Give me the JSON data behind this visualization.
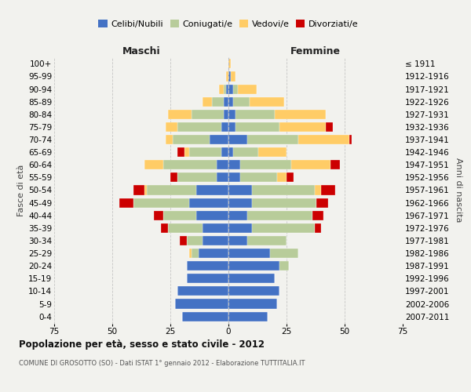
{
  "age_groups": [
    "100+",
    "95-99",
    "90-94",
    "85-89",
    "80-84",
    "75-79",
    "70-74",
    "65-69",
    "60-64",
    "55-59",
    "50-54",
    "45-49",
    "40-44",
    "35-39",
    "30-34",
    "25-29",
    "20-24",
    "15-19",
    "10-14",
    "5-9",
    "0-4"
  ],
  "birth_years": [
    "≤ 1911",
    "1912-1916",
    "1917-1921",
    "1922-1926",
    "1927-1931",
    "1932-1936",
    "1937-1941",
    "1942-1946",
    "1947-1951",
    "1952-1956",
    "1957-1961",
    "1962-1966",
    "1967-1971",
    "1972-1976",
    "1977-1981",
    "1982-1986",
    "1987-1991",
    "1992-1996",
    "1997-2001",
    "2002-2006",
    "2007-2011"
  ],
  "maschi_celibi": [
    0,
    0,
    1,
    2,
    2,
    3,
    8,
    3,
    5,
    5,
    14,
    17,
    14,
    11,
    11,
    13,
    18,
    18,
    22,
    23,
    20
  ],
  "maschi_coniugati": [
    0,
    0,
    1,
    5,
    14,
    19,
    16,
    14,
    23,
    17,
    21,
    24,
    14,
    15,
    7,
    3,
    0,
    0,
    0,
    0,
    0
  ],
  "maschi_vedovi": [
    0,
    1,
    2,
    4,
    10,
    5,
    3,
    2,
    8,
    0,
    1,
    0,
    0,
    0,
    0,
    1,
    0,
    0,
    0,
    0,
    0
  ],
  "maschi_divorziati": [
    0,
    0,
    0,
    0,
    0,
    0,
    0,
    3,
    0,
    3,
    5,
    6,
    4,
    3,
    3,
    0,
    0,
    0,
    0,
    0,
    0
  ],
  "femmine_celibi": [
    0,
    1,
    2,
    2,
    3,
    3,
    8,
    2,
    5,
    5,
    10,
    10,
    8,
    10,
    8,
    18,
    22,
    20,
    22,
    21,
    17
  ],
  "femmine_coniugati": [
    0,
    0,
    2,
    7,
    17,
    19,
    22,
    11,
    22,
    16,
    27,
    28,
    28,
    27,
    17,
    12,
    4,
    0,
    0,
    0,
    0
  ],
  "femmine_vedovi": [
    1,
    2,
    8,
    15,
    22,
    20,
    22,
    12,
    17,
    4,
    3,
    0,
    0,
    0,
    0,
    0,
    0,
    0,
    0,
    0,
    0
  ],
  "femmine_divorziati": [
    0,
    0,
    0,
    0,
    0,
    3,
    1,
    0,
    4,
    3,
    6,
    5,
    5,
    3,
    0,
    0,
    0,
    0,
    0,
    0,
    0
  ],
  "color_celibi": "#4472C4",
  "color_coniugati": "#B8CC9A",
  "color_vedovi": "#FFCC66",
  "color_divorziati": "#CC0000",
  "xlim": 75,
  "title": "Popolazione per età, sesso e stato civile - 2012",
  "subtitle": "COMUNE DI GROSOTTO (SO) - Dati ISTAT 1° gennaio 2012 - Elaborazione TUTTITALIA.IT",
  "ylabel_left": "Fasce di età",
  "ylabel_right": "Anni di nascita",
  "label_maschi": "Maschi",
  "label_femmine": "Femmine",
  "legend_labels": [
    "Celibi/Nubili",
    "Coniugati/e",
    "Vedovi/e",
    "Divorziati/e"
  ],
  "bg_color": "#f2f2ee",
  "bar_height": 0.75
}
